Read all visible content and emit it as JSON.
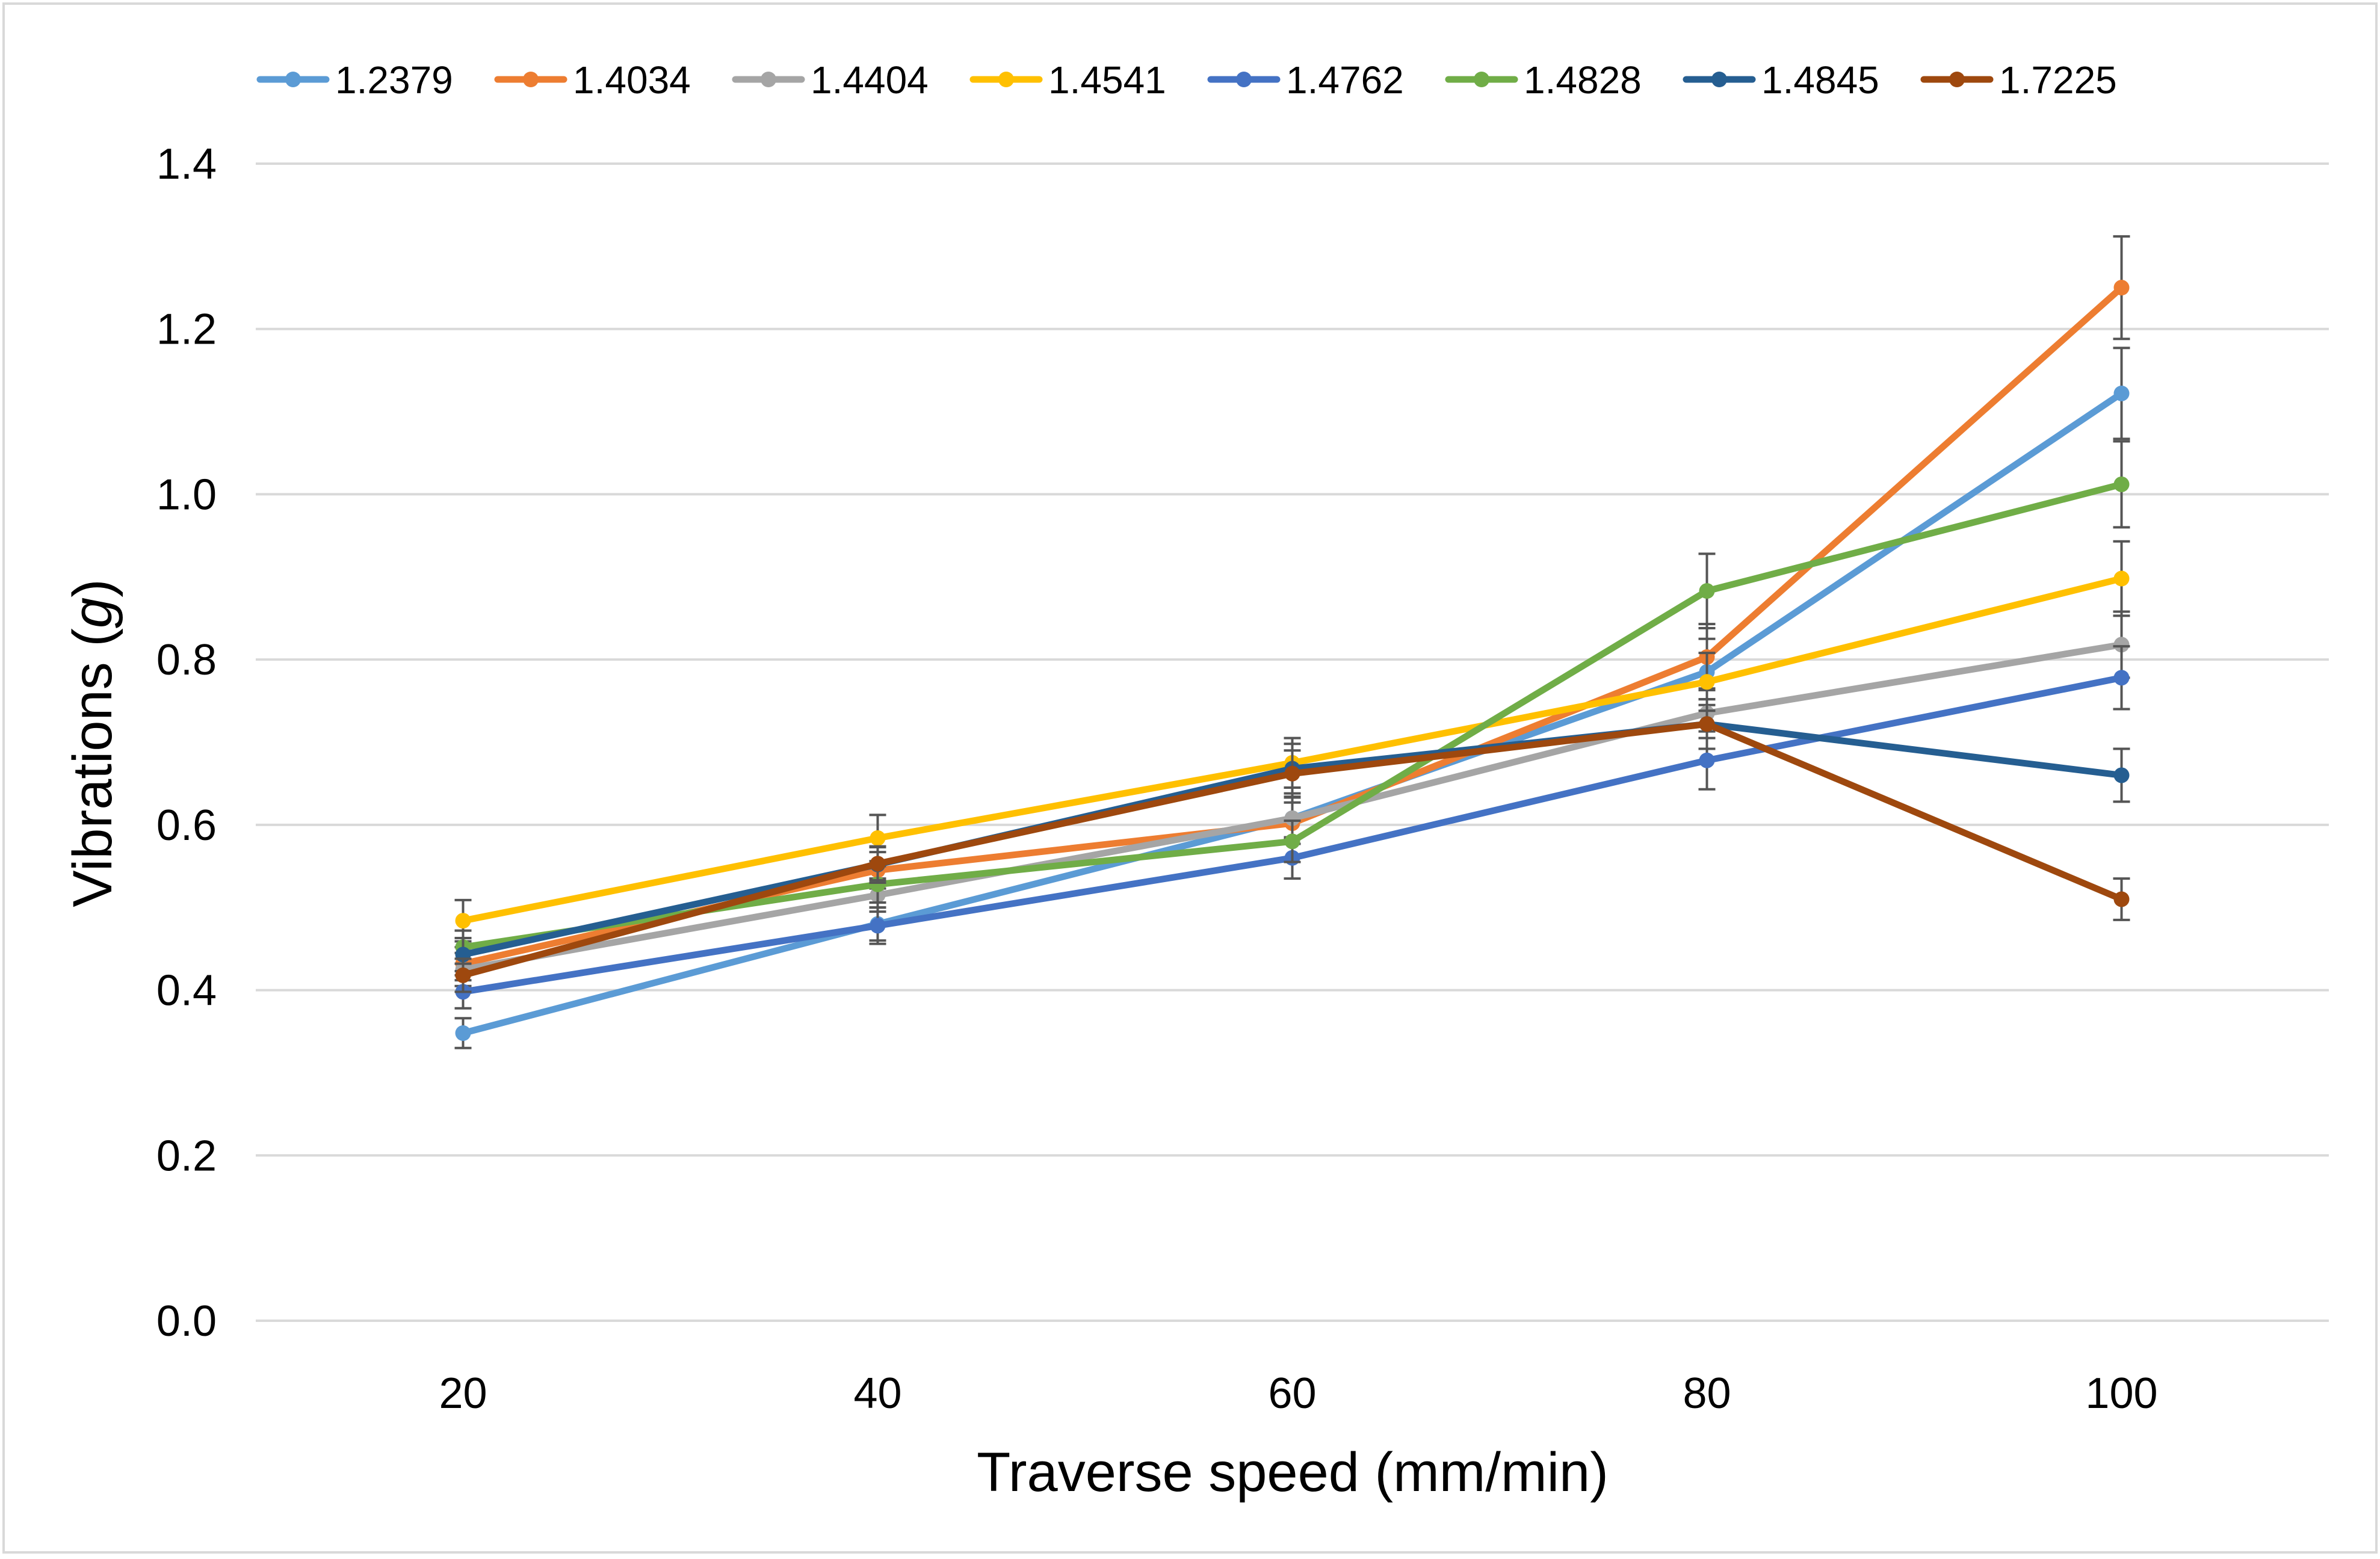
{
  "chart_data": {
    "type": "line",
    "title": "",
    "xlabel": "Traverse speed (mm/min)",
    "ylabel_prefix": "Vibrations (",
    "ylabel_italic": "g",
    "ylabel_suffix": ")",
    "x": [
      20,
      40,
      60,
      80,
      100
    ],
    "x_tick_labels": [
      "20",
      "40",
      "60",
      "80",
      "100"
    ],
    "ylim": [
      0,
      1.4
    ],
    "y_ticks": [
      0,
      0.2,
      0.4,
      0.6,
      0.8,
      1.0,
      1.2,
      1.4
    ],
    "y_tick_labels": [
      "0.0",
      "0.2",
      "0.4",
      "0.6",
      "0.8",
      "1.0",
      "1.2",
      "1.4"
    ],
    "grid": true,
    "legend_position": "top",
    "error_bar_color": "#555555",
    "series": [
      {
        "name": "1.2379",
        "color": "#5B9BD5",
        "values": [
          0.348,
          0.48,
          0.608,
          0.785,
          1.122
        ],
        "errors": [
          0.018,
          0.02,
          0.025,
          0.04,
          0.055
        ]
      },
      {
        "name": "1.4034",
        "color": "#ED7D31",
        "values": [
          0.432,
          0.545,
          0.602,
          0.803,
          1.25
        ],
        "errors": [
          0.02,
          0.022,
          0.025,
          0.04,
          0.062
        ]
      },
      {
        "name": "1.4404",
        "color": "#A5A5A5",
        "values": [
          0.425,
          0.515,
          0.608,
          0.735,
          0.818
        ],
        "errors": [
          0.02,
          0.02,
          0.025,
          0.03,
          0.04
        ]
      },
      {
        "name": "1.4541",
        "color": "#FFC000",
        "values": [
          0.484,
          0.584,
          0.675,
          0.773,
          0.898
        ],
        "errors": [
          0.025,
          0.028,
          0.03,
          0.035,
          0.045
        ]
      },
      {
        "name": "1.4762",
        "color": "#4472C4",
        "values": [
          0.398,
          0.478,
          0.56,
          0.678,
          0.778
        ],
        "errors": [
          0.02,
          0.022,
          0.025,
          0.035,
          0.038
        ]
      },
      {
        "name": "1.4828",
        "color": "#70AD47",
        "values": [
          0.452,
          0.528,
          0.58,
          0.883,
          1.012
        ],
        "errors": [
          0.02,
          0.022,
          0.025,
          0.045,
          0.052
        ]
      },
      {
        "name": "1.4845",
        "color": "#255E91",
        "values": [
          0.443,
          0.552,
          0.668,
          0.722,
          0.66
        ],
        "errors": [
          0.02,
          0.022,
          0.03,
          0.03,
          0.032
        ]
      },
      {
        "name": "1.7225",
        "color": "#9E480E",
        "values": [
          0.418,
          0.553,
          0.662,
          0.722,
          0.51
        ],
        "errors": [
          0.02,
          0.02,
          0.028,
          0.03,
          0.025
        ]
      }
    ]
  }
}
